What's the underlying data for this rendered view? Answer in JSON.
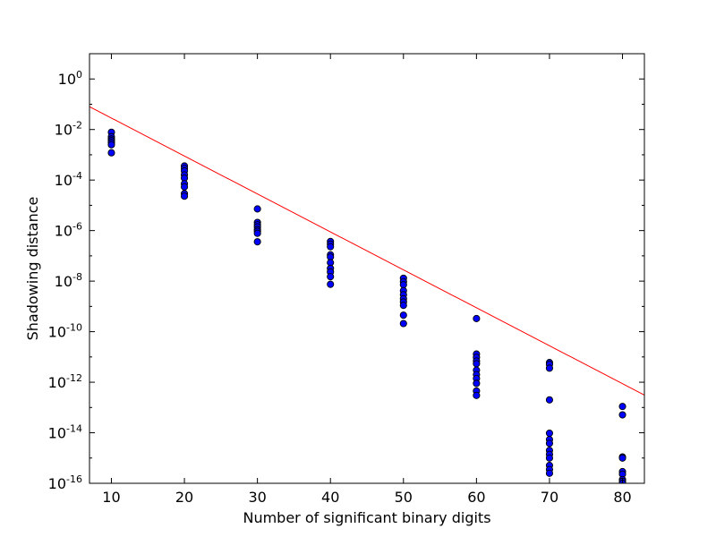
{
  "chart_data": {
    "type": "scatter",
    "title": "",
    "xlabel": "Number of significant binary digits",
    "ylabel": "Shadowing distance",
    "xlim": [
      7,
      83
    ],
    "ylim": [
      1e-16,
      10
    ],
    "yscale": "log",
    "grid": false,
    "x_ticks": [
      10,
      20,
      30,
      40,
      50,
      60,
      70,
      80
    ],
    "y_ticks": [
      {
        "exp": 0,
        "base": "10",
        "sup": "0"
      },
      {
        "exp": -2,
        "base": "10",
        "sup": "-2"
      },
      {
        "exp": -4,
        "base": "10",
        "sup": "-4"
      },
      {
        "exp": -6,
        "base": "10",
        "sup": "-6"
      },
      {
        "exp": -8,
        "base": "10",
        "sup": "-8"
      },
      {
        "exp": -10,
        "base": "10",
        "sup": "-10"
      },
      {
        "exp": -12,
        "base": "10",
        "sup": "-12"
      },
      {
        "exp": -14,
        "base": "10",
        "sup": "-14"
      },
      {
        "exp": -16,
        "base": "10",
        "sup": "-16"
      }
    ],
    "series": [
      {
        "type": "scatter",
        "color": "#0000ff",
        "points": [
          [
            10,
            0.0078
          ],
          [
            10,
            0.0052
          ],
          [
            10,
            0.0042
          ],
          [
            10,
            0.0036
          ],
          [
            10,
            0.003
          ],
          [
            10,
            0.0025
          ],
          [
            10,
            0.0012
          ],
          [
            20,
            0.00036
          ],
          [
            20,
            0.00029
          ],
          [
            20,
            0.00023
          ],
          [
            20,
            0.00016
          ],
          [
            20,
            0.00012
          ],
          [
            20,
            7.2e-05
          ],
          [
            20,
            5.4e-05
          ],
          [
            20,
            2.9e-05
          ],
          [
            20,
            2.3e-05
          ],
          [
            30,
            7.2e-06
          ],
          [
            30,
            2.1e-06
          ],
          [
            30,
            1.7e-06
          ],
          [
            30,
            1.4e-06
          ],
          [
            30,
            1.1e-06
          ],
          [
            30,
            9.4e-07
          ],
          [
            30,
            7.8e-07
          ],
          [
            30,
            3.6e-07
          ],
          [
            40,
            3.7e-07
          ],
          [
            40,
            2.9e-07
          ],
          [
            40,
            2.3e-07
          ],
          [
            40,
            1.1e-07
          ],
          [
            40,
            9e-08
          ],
          [
            40,
            5.4e-08
          ],
          [
            40,
            3.2e-08
          ],
          [
            40,
            2.3e-08
          ],
          [
            40,
            1.5e-08
          ],
          [
            40,
            7.5e-09
          ],
          [
            50,
            1.3e-08
          ],
          [
            50,
            9.4e-09
          ],
          [
            50,
            7.2e-09
          ],
          [
            50,
            4.2e-09
          ],
          [
            50,
            2.9e-09
          ],
          [
            50,
            2e-09
          ],
          [
            50,
            1.5e-09
          ],
          [
            50,
            1.1e-09
          ],
          [
            50,
            4.5e-10
          ],
          [
            50,
            2.1e-10
          ],
          [
            60,
            3.3e-10
          ],
          [
            60,
            1.3e-11
          ],
          [
            60,
            9.6e-12
          ],
          [
            60,
            6.9e-12
          ],
          [
            60,
            5.4e-12
          ],
          [
            60,
            3e-12
          ],
          [
            60,
            2e-12
          ],
          [
            60,
            1.4e-12
          ],
          [
            60,
            9e-13
          ],
          [
            60,
            4.5e-13
          ],
          [
            60,
            3e-13
          ],
          [
            70,
            6e-12
          ],
          [
            70,
            5.1e-12
          ],
          [
            70,
            3.6e-12
          ],
          [
            70,
            2e-13
          ],
          [
            70,
            9.6e-15
          ],
          [
            70,
            5.4e-15
          ],
          [
            70,
            3.8e-15
          ],
          [
            70,
            2e-15
          ],
          [
            70,
            1.4e-15
          ],
          [
            70,
            1e-15
          ],
          [
            70,
            5.1e-16
          ],
          [
            70,
            3.5e-16
          ],
          [
            70,
            2.5e-16
          ],
          [
            80,
            1.1e-13
          ],
          [
            80,
            5.1e-14
          ],
          [
            80,
            1.1e-15
          ],
          [
            80,
            1e-15
          ],
          [
            80,
            2.9e-16
          ],
          [
            80,
            2.3e-16
          ],
          [
            80,
            1.4e-16
          ],
          [
            80,
            1.2e-16
          ],
          [
            80,
            1e-16
          ]
        ]
      },
      {
        "type": "line",
        "color": "#ff0000",
        "points": [
          [
            7,
            0.08
          ],
          [
            83,
            3.1e-13
          ]
        ]
      }
    ]
  }
}
